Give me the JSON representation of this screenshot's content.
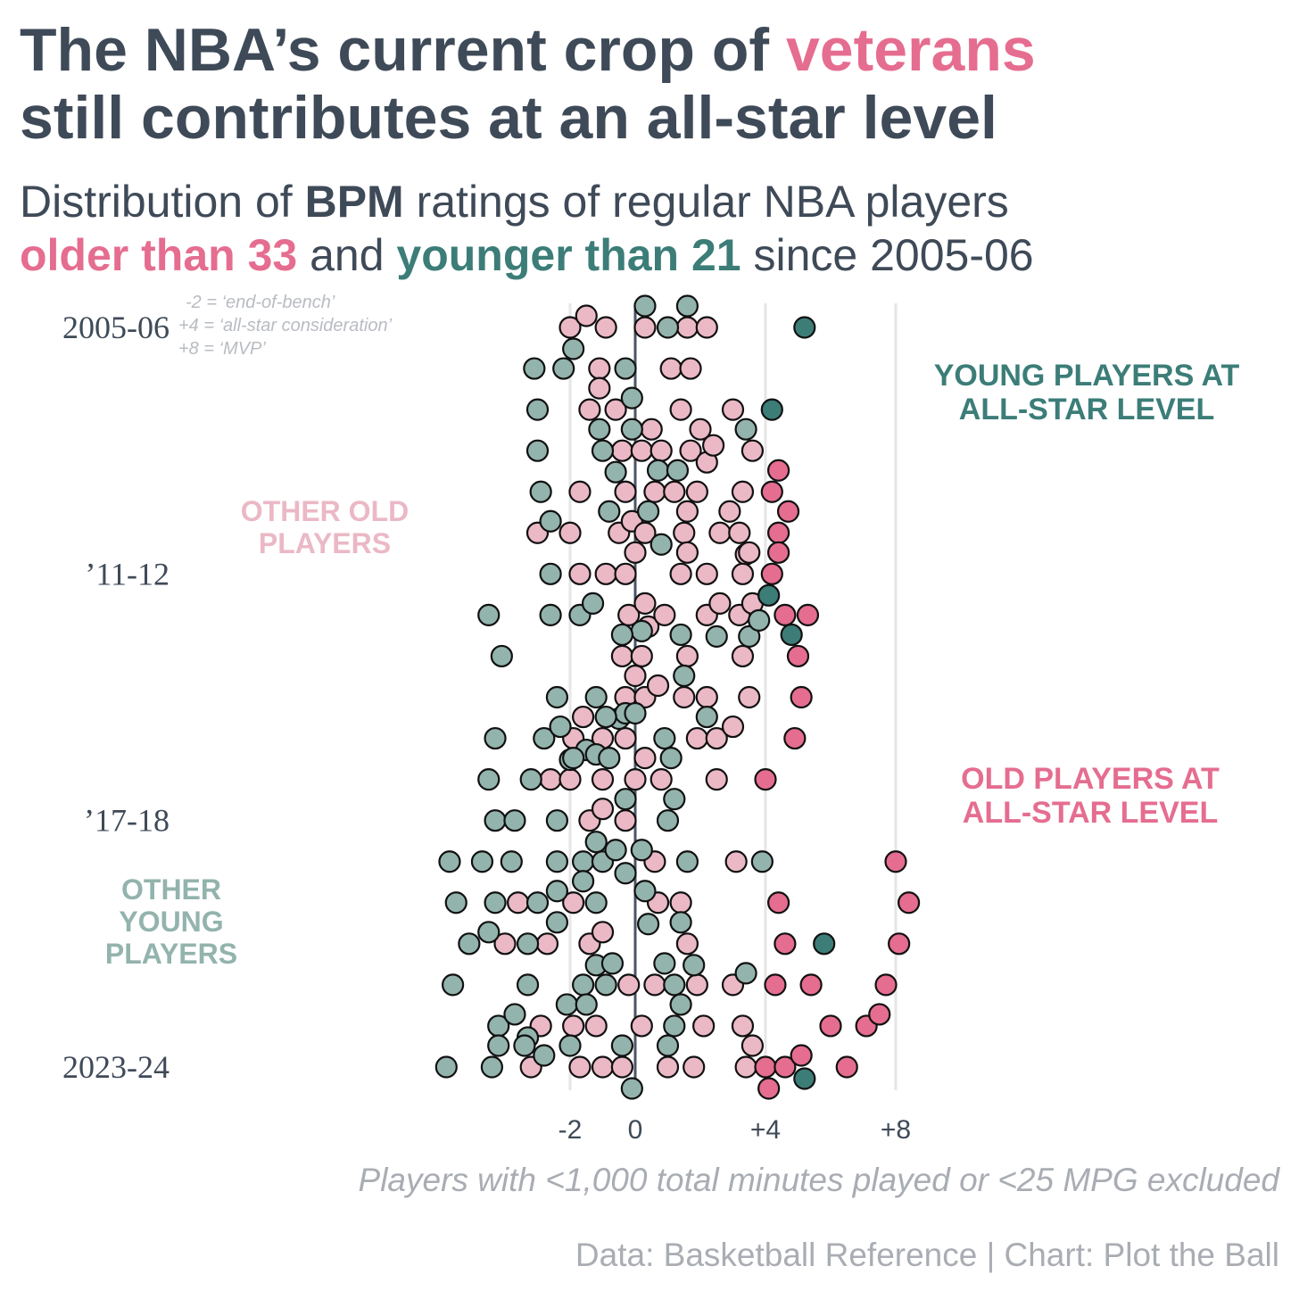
{
  "title": {
    "part1": "The NBA’s current crop of ",
    "highlight": "veterans",
    "line2": "still contributes at an all-star level"
  },
  "subtitle": {
    "part1": "Distribution of ",
    "bold": "BPM",
    "part2": " ratings of regular NBA players",
    "old_label": "older than 33",
    "and": " and ",
    "young_label": "younger than 21",
    "since": " since 2005-06"
  },
  "legend_note": [
    "-2 = ‘end-of-bench’",
    "+4 = ‘all-star consideration’",
    "+8 = ‘MVP’"
  ],
  "annotations": {
    "young_allstar": [
      "YOUNG PLAYERS AT",
      "ALL-STAR LEVEL"
    ],
    "old_allstar": [
      "OLD PLAYERS AT",
      "ALL-STAR LEVEL"
    ],
    "other_old": [
      "OTHER OLD",
      "PLAYERS"
    ],
    "other_young": [
      "OTHER",
      "YOUNG",
      "PLAYERS"
    ]
  },
  "footnote": "Players with <1,000 total minutes played or <25 MPG excluded",
  "source": "Data: Basketball Reference | Chart: Plot the Ball",
  "colors": {
    "text": "#3f4a58",
    "old_highlight": "#e56d90",
    "old_other": "#ebb8c6",
    "young_highlight": "#3c7d78",
    "young_other": "#93b3ad",
    "gridline": "#e6e6e6",
    "zero_line": "#4b5563"
  },
  "chart_data": {
    "type": "scatter",
    "title": "Distribution of BPM ratings of regular NBA players older than 33 and younger than 21 since 2005-06",
    "x_ticks": [
      -2,
      0,
      4,
      8
    ],
    "x_tick_labels": [
      "-2",
      "0",
      "+4",
      "+8"
    ],
    "xlim": [
      -6,
      9.5
    ],
    "y_categories": [
      "2005-06",
      "2006-07",
      "2007-08",
      "2008-09",
      "2009-10",
      "2010-11",
      "2011-12",
      "2012-13",
      "2013-14",
      "2014-15",
      "2015-16",
      "2016-17",
      "2017-18",
      "2018-19",
      "2019-20",
      "2020-21",
      "2021-22",
      "2022-23",
      "2023-24"
    ],
    "y_tick_labels": [
      "2005-06",
      "’11-12",
      "’17-18",
      "2023-24"
    ],
    "y_tick_positions": [
      "2005-06",
      "2011-12",
      "2017-18",
      "2023-24"
    ],
    "allstar_threshold": 4,
    "series": [
      {
        "name": "older than 33",
        "points": [
          [
            "2005-06",
            -2
          ],
          [
            "2005-06",
            -1.5
          ],
          [
            "2005-06",
            -0.9
          ],
          [
            "2005-06",
            0.3
          ],
          [
            "2005-06",
            1.6
          ],
          [
            "2005-06",
            2.2
          ],
          [
            "2006-07",
            -1.1
          ],
          [
            "2006-07",
            1.1
          ],
          [
            "2006-07",
            1.7
          ],
          [
            "2007-08",
            -1.4
          ],
          [
            "2007-08",
            -1.1
          ],
          [
            "2007-08",
            -0.6
          ],
          [
            "2007-08",
            1.4
          ],
          [
            "2007-08",
            3.0
          ],
          [
            "2008-09",
            -0.4
          ],
          [
            "2008-09",
            0.2
          ],
          [
            "2008-09",
            0.5
          ],
          [
            "2008-09",
            0.8
          ],
          [
            "2008-09",
            1.7
          ],
          [
            "2008-09",
            2.0
          ],
          [
            "2008-09",
            2.2
          ],
          [
            "2008-09",
            2.4
          ],
          [
            "2008-09",
            3.6
          ],
          [
            "2009-10",
            -1.7
          ],
          [
            "2009-10",
            -0.3
          ],
          [
            "2009-10",
            0.6
          ],
          [
            "2009-10",
            1.2
          ],
          [
            "2009-10",
            1.9
          ],
          [
            "2009-10",
            3.3
          ],
          [
            "2009-10",
            4.2
          ],
          [
            "2009-10",
            4.4
          ],
          [
            "2010-11",
            -3.0
          ],
          [
            "2010-11",
            -2.0
          ],
          [
            "2010-11",
            -0.5
          ],
          [
            "2010-11",
            -0.1
          ],
          [
            "2010-11",
            0.3
          ],
          [
            "2010-11",
            1.5
          ],
          [
            "2010-11",
            1.6
          ],
          [
            "2010-11",
            2.6
          ],
          [
            "2010-11",
            2.9
          ],
          [
            "2010-11",
            3.2
          ],
          [
            "2010-11",
            3.4
          ],
          [
            "2010-11",
            4.4
          ],
          [
            "2010-11",
            4.7
          ],
          [
            "2011-12",
            -1.7
          ],
          [
            "2011-12",
            -0.9
          ],
          [
            "2011-12",
            -0.3
          ],
          [
            "2011-12",
            0.0
          ],
          [
            "2011-12",
            1.4
          ],
          [
            "2011-12",
            1.6
          ],
          [
            "2011-12",
            2.2
          ],
          [
            "2011-12",
            3.3
          ],
          [
            "2011-12",
            3.5
          ],
          [
            "2011-12",
            4.2
          ],
          [
            "2011-12",
            4.4
          ],
          [
            "2012-13",
            -0.2
          ],
          [
            "2012-13",
            0.3
          ],
          [
            "2012-13",
            0.4
          ],
          [
            "2012-13",
            0.9
          ],
          [
            "2012-13",
            2.2
          ],
          [
            "2012-13",
            2.6
          ],
          [
            "2012-13",
            3.2
          ],
          [
            "2012-13",
            3.6
          ],
          [
            "2012-13",
            4.6
          ],
          [
            "2012-13",
            5.3
          ],
          [
            "2013-14",
            -0.4
          ],
          [
            "2013-14",
            0.2
          ],
          [
            "2013-14",
            1.6
          ],
          [
            "2013-14",
            3.3
          ],
          [
            "2013-14",
            5.0
          ],
          [
            "2014-15",
            -0.3
          ],
          [
            "2014-15",
            0.0
          ],
          [
            "2014-15",
            0.3
          ],
          [
            "2014-15",
            0.7
          ],
          [
            "2014-15",
            1.5
          ],
          [
            "2014-15",
            2.2
          ],
          [
            "2014-15",
            3.5
          ],
          [
            "2014-15",
            5.1
          ],
          [
            "2015-16",
            -1.9
          ],
          [
            "2015-16",
            -1.6
          ],
          [
            "2015-16",
            -1.0
          ],
          [
            "2015-16",
            -0.3
          ],
          [
            "2015-16",
            1.9
          ],
          [
            "2015-16",
            2.5
          ],
          [
            "2015-16",
            3.0
          ],
          [
            "2015-16",
            4.9
          ],
          [
            "2016-17",
            -2.6
          ],
          [
            "2016-17",
            -2.0
          ],
          [
            "2016-17",
            -1.0
          ],
          [
            "2016-17",
            0.0
          ],
          [
            "2016-17",
            0.3
          ],
          [
            "2016-17",
            0.8
          ],
          [
            "2016-17",
            2.5
          ],
          [
            "2016-17",
            4.0
          ],
          [
            "2017-18",
            -1.4
          ],
          [
            "2017-18",
            -1.0
          ],
          [
            "2017-18",
            -0.3
          ],
          [
            "2018-19",
            0.6
          ],
          [
            "2018-19",
            3.1
          ],
          [
            "2018-19",
            8.0
          ],
          [
            "2019-20",
            -3.6
          ],
          [
            "2019-20",
            -1.9
          ],
          [
            "2019-20",
            0.7
          ],
          [
            "2019-20",
            1.4
          ],
          [
            "2019-20",
            4.4
          ],
          [
            "2019-20",
            8.4
          ],
          [
            "2020-21",
            -4.0
          ],
          [
            "2020-21",
            -2.7
          ],
          [
            "2020-21",
            -1.4
          ],
          [
            "2020-21",
            -1.0
          ],
          [
            "2020-21",
            1.6
          ],
          [
            "2020-21",
            4.6
          ],
          [
            "2020-21",
            8.1
          ],
          [
            "2021-22",
            -0.2
          ],
          [
            "2021-22",
            0.6
          ],
          [
            "2021-22",
            1.9
          ],
          [
            "2021-22",
            3.0
          ],
          [
            "2021-22",
            4.3
          ],
          [
            "2021-22",
            5.4
          ],
          [
            "2021-22",
            7.7
          ],
          [
            "2022-23",
            -2.9
          ],
          [
            "2022-23",
            -1.9
          ],
          [
            "2022-23",
            -1.2
          ],
          [
            "2022-23",
            0.2
          ],
          [
            "2022-23",
            2.1
          ],
          [
            "2022-23",
            3.3
          ],
          [
            "2022-23",
            6.0
          ],
          [
            "2022-23",
            7.1
          ],
          [
            "2022-23",
            7.5
          ],
          [
            "2023-24",
            -3.2
          ],
          [
            "2023-24",
            -1.7
          ],
          [
            "2023-24",
            -1.0
          ],
          [
            "2023-24",
            -0.4
          ],
          [
            "2023-24",
            1.0
          ],
          [
            "2023-24",
            1.8
          ],
          [
            "2023-24",
            3.4
          ],
          [
            "2023-24",
            3.6
          ],
          [
            "2023-24",
            4.0
          ],
          [
            "2023-24",
            4.1
          ],
          [
            "2023-24",
            4.6
          ],
          [
            "2023-24",
            5.1
          ],
          [
            "2023-24",
            6.5
          ]
        ]
      },
      {
        "name": "younger than 21",
        "points": [
          [
            "2005-06",
            -1.9
          ],
          [
            "2005-06",
            0.3
          ],
          [
            "2005-06",
            1.0
          ],
          [
            "2005-06",
            1.6
          ],
          [
            "2005-06",
            5.2
          ],
          [
            "2006-07",
            -3.1
          ],
          [
            "2006-07",
            -2.2
          ],
          [
            "2006-07",
            -0.3
          ],
          [
            "2007-08",
            -3.0
          ],
          [
            "2007-08",
            -0.1
          ],
          [
            "2007-08",
            4.2
          ],
          [
            "2008-09",
            -3.0
          ],
          [
            "2008-09",
            -1.0
          ],
          [
            "2008-09",
            -1.1
          ],
          [
            "2008-09",
            -0.6
          ],
          [
            "2008-09",
            -0.1
          ],
          [
            "2008-09",
            3.4
          ],
          [
            "2009-10",
            -2.9
          ],
          [
            "2009-10",
            0.7
          ],
          [
            "2009-10",
            1.3
          ],
          [
            "2010-11",
            -2.6
          ],
          [
            "2010-11",
            -0.8
          ],
          [
            "2010-11",
            0.4
          ],
          [
            "2010-11",
            0.8
          ],
          [
            "2011-12",
            -2.6
          ],
          [
            "2011-12",
            4.1
          ],
          [
            "2012-13",
            -4.5
          ],
          [
            "2012-13",
            -2.6
          ],
          [
            "2012-13",
            -1.7
          ],
          [
            "2012-13",
            -1.3
          ],
          [
            "2012-13",
            0.2
          ],
          [
            "2012-13",
            2.5
          ],
          [
            "2012-13",
            3.5
          ],
          [
            "2012-13",
            3.8
          ],
          [
            "2013-14",
            -4.1
          ],
          [
            "2013-14",
            -0.4
          ],
          [
            "2013-14",
            1.4
          ],
          [
            "2013-14",
            4.8
          ],
          [
            "2014-15",
            -2.4
          ],
          [
            "2014-15",
            -1.2
          ],
          [
            "2014-15",
            -0.5
          ],
          [
            "2014-15",
            -0.3
          ],
          [
            "2014-15",
            0.0
          ],
          [
            "2014-15",
            1.5
          ],
          [
            "2015-16",
            -4.3
          ],
          [
            "2015-16",
            -2.8
          ],
          [
            "2015-16",
            -2.3
          ],
          [
            "2015-16",
            -2.0
          ],
          [
            "2015-16",
            -1.5
          ],
          [
            "2015-16",
            -1.2
          ],
          [
            "2015-16",
            -0.9
          ],
          [
            "2015-16",
            0.9
          ],
          [
            "2015-16",
            2.2
          ],
          [
            "2016-17",
            -4.5
          ],
          [
            "2016-17",
            -3.2
          ],
          [
            "2016-17",
            -1.9
          ],
          [
            "2016-17",
            -0.8
          ],
          [
            "2016-17",
            1.1
          ],
          [
            "2017-18",
            -4.3
          ],
          [
            "2017-18",
            -3.7
          ],
          [
            "2017-18",
            -2.4
          ],
          [
            "2017-18",
            -1.2
          ],
          [
            "2017-18",
            -0.3
          ],
          [
            "2017-18",
            1.0
          ],
          [
            "2017-18",
            1.2
          ],
          [
            "2018-19",
            -5.7
          ],
          [
            "2018-19",
            -4.7
          ],
          [
            "2018-19",
            -3.8
          ],
          [
            "2018-19",
            -2.4
          ],
          [
            "2018-19",
            -1.6
          ],
          [
            "2018-19",
            -1.0
          ],
          [
            "2018-19",
            -0.6
          ],
          [
            "2018-19",
            -0.3
          ],
          [
            "2018-19",
            0.2
          ],
          [
            "2018-19",
            1.6
          ],
          [
            "2018-19",
            3.9
          ],
          [
            "2019-20",
            -5.5
          ],
          [
            "2019-20",
            -4.3
          ],
          [
            "2019-20",
            -3.0
          ],
          [
            "2019-20",
            -2.4
          ],
          [
            "2019-20",
            -1.6
          ],
          [
            "2019-20",
            -1.2
          ],
          [
            "2019-20",
            0.3
          ],
          [
            "2019-20",
            0.4
          ],
          [
            "2020-21",
            -5.1
          ],
          [
            "2020-21",
            -4.5
          ],
          [
            "2020-21",
            -3.3
          ],
          [
            "2020-21",
            -2.4
          ],
          [
            "2020-21",
            -1.2
          ],
          [
            "2020-21",
            1.4
          ],
          [
            "2020-21",
            1.8
          ],
          [
            "2020-21",
            5.8
          ],
          [
            "2021-22",
            -5.6
          ],
          [
            "2021-22",
            -3.3
          ],
          [
            "2021-22",
            -1.6
          ],
          [
            "2021-22",
            -0.9
          ],
          [
            "2021-22",
            -0.7
          ],
          [
            "2021-22",
            0.9
          ],
          [
            "2021-22",
            1.2
          ],
          [
            "2021-22",
            3.4
          ],
          [
            "2022-23",
            -4.2
          ],
          [
            "2022-23",
            -3.7
          ],
          [
            "2022-23",
            -3.3
          ],
          [
            "2022-23",
            -2.1
          ],
          [
            "2022-23",
            -1.5
          ],
          [
            "2022-23",
            1.2
          ],
          [
            "2022-23",
            1.4
          ],
          [
            "2023-24",
            -5.8
          ],
          [
            "2023-24",
            -4.4
          ],
          [
            "2023-24",
            -4.2
          ],
          [
            "2023-24",
            -3.4
          ],
          [
            "2023-24",
            -2.8
          ],
          [
            "2023-24",
            -2.0
          ],
          [
            "2023-24",
            -0.4
          ],
          [
            "2023-24",
            -0.1
          ],
          [
            "2023-24",
            1.0
          ],
          [
            "2023-24",
            5.2
          ]
        ]
      }
    ]
  }
}
